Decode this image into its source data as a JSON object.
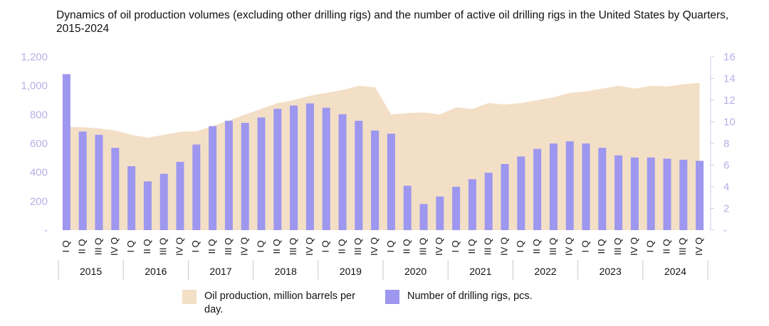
{
  "chart_data": {
    "type": "bar+area",
    "title": "Dynamics of oil production volumes (excluding other drilling rigs) and the number of active oil drilling rigs in the United States by Quarters, 2015-2024",
    "quarter_labels": [
      "I Q",
      "II Q",
      "III Q",
      "IV Q"
    ],
    "years": [
      "2015",
      "2016",
      "2017",
      "2018",
      "2019",
      "2020",
      "2021",
      "2022",
      "2023",
      "2024"
    ],
    "y_left": {
      "ticks": [
        "-",
        "200",
        "400",
        "600",
        "800",
        "1,000",
        "1,200"
      ],
      "min": 0,
      "max": 1200
    },
    "y_right": {
      "ticks": [
        "-",
        "2",
        "4",
        "6",
        "8",
        "10",
        "12",
        "14",
        "16"
      ],
      "min": 0,
      "max": 16
    },
    "series": [
      {
        "name": "Oil production, million barrels per day.",
        "kind": "area",
        "axis": "left",
        "color": "#f3dfc6",
        "values": [
          715,
          712,
          705,
          690,
          660,
          640,
          660,
          680,
          685,
          720,
          760,
          800,
          840,
          880,
          900,
          930,
          950,
          970,
          1000,
          990,
          800,
          810,
          815,
          800,
          850,
          840,
          880,
          870,
          880,
          900,
          920,
          950,
          960,
          980,
          1000,
          980,
          1000,
          995,
          1010,
          1020
        ]
      },
      {
        "name": "Number of drilling rigs, pcs.",
        "kind": "bar",
        "axis": "right",
        "color": "#9d97ef",
        "values": [
          14.4,
          9.1,
          8.8,
          7.6,
          5.9,
          4.5,
          5.2,
          6.3,
          7.9,
          9.6,
          10.1,
          9.9,
          10.4,
          11.2,
          11.5,
          11.7,
          11.3,
          10.7,
          10.1,
          9.2,
          8.9,
          4.1,
          2.4,
          3.1,
          4.0,
          4.7,
          5.3,
          6.1,
          6.8,
          7.5,
          8.0,
          8.2,
          8.0,
          7.6,
          6.9,
          6.7,
          6.7,
          6.6,
          6.5,
          6.4
        ]
      }
    ],
    "legend_position": "bottom",
    "grid": false
  }
}
